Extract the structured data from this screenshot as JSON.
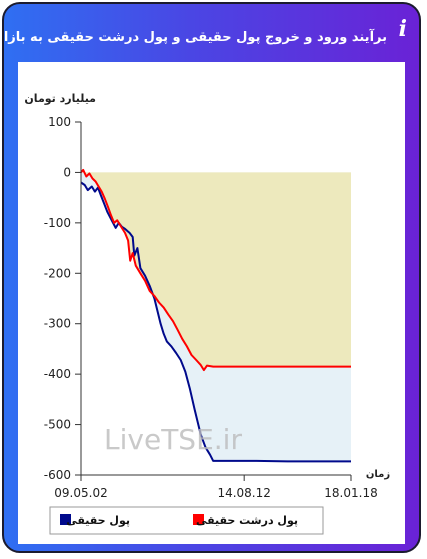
{
  "title": "برآیند ورود و خروج پول حقیقی و پول درشت حقیقی به بازار",
  "info_glyph": "i",
  "colors": {
    "gradient_start": "#2f6ff2",
    "gradient_end": "#6a22d6",
    "series_real": "#000a8c",
    "series_big_real": "#ff0000",
    "fill_big_real": "#ede9bd",
    "fill_real": "#e6f1f7"
  },
  "chart_data": {
    "type": "area",
    "title": "",
    "ylabel": "میلیارد تومان",
    "xlabel": "زمان",
    "ylim": [
      -600,
      100
    ],
    "yticks": [
      100,
      0,
      -100,
      -200,
      -300,
      -400,
      -500,
      -600
    ],
    "x_tick_labels": [
      "09.05.02",
      "14.08.12",
      "18.01.18"
    ],
    "xlim": [
      2009.33,
      2018.05
    ],
    "x_tick_values": [
      2009.33,
      2014.6,
      2018.05
    ],
    "watermark": "LiveTSE.ir",
    "grid": false,
    "legend_position": "bottom",
    "series": [
      {
        "name": "پول حقیقی",
        "color": "#000a8c",
        "points": [
          [
            2009.33,
            -20
          ],
          [
            2009.45,
            -25
          ],
          [
            2009.55,
            -35
          ],
          [
            2009.68,
            -28
          ],
          [
            2009.78,
            -38
          ],
          [
            2009.88,
            -30
          ],
          [
            2009.97,
            -45
          ],
          [
            2010.08,
            -62
          ],
          [
            2010.18,
            -78
          ],
          [
            2010.32,
            -95
          ],
          [
            2010.45,
            -110
          ],
          [
            2010.55,
            -100
          ],
          [
            2010.65,
            -108
          ],
          [
            2010.75,
            -112
          ],
          [
            2010.9,
            -120
          ],
          [
            2011.0,
            -128
          ],
          [
            2011.05,
            -165
          ],
          [
            2011.15,
            -150
          ],
          [
            2011.25,
            -190
          ],
          [
            2011.4,
            -205
          ],
          [
            2011.55,
            -225
          ],
          [
            2011.7,
            -250
          ],
          [
            2011.8,
            -275
          ],
          [
            2011.9,
            -300
          ],
          [
            2012.0,
            -320
          ],
          [
            2012.1,
            -335
          ],
          [
            2012.25,
            -345
          ],
          [
            2012.4,
            -358
          ],
          [
            2012.55,
            -372
          ],
          [
            2012.7,
            -395
          ],
          [
            2012.85,
            -430
          ],
          [
            2013.0,
            -470
          ],
          [
            2013.1,
            -495
          ],
          [
            2013.2,
            -520
          ],
          [
            2013.35,
            -545
          ],
          [
            2013.5,
            -560
          ],
          [
            2013.6,
            -572
          ],
          [
            2014.0,
            -572
          ],
          [
            2015.0,
            -572
          ],
          [
            2016.0,
            -573
          ],
          [
            2017.0,
            -573
          ],
          [
            2018.05,
            -573
          ]
        ]
      },
      {
        "name": "پول درشت حقیقی",
        "color": "#ff0000",
        "points": [
          [
            2009.33,
            0
          ],
          [
            2009.4,
            5
          ],
          [
            2009.5,
            -8
          ],
          [
            2009.6,
            -2
          ],
          [
            2009.7,
            -12
          ],
          [
            2009.8,
            -18
          ],
          [
            2009.9,
            -28
          ],
          [
            2010.0,
            -38
          ],
          [
            2010.1,
            -52
          ],
          [
            2010.2,
            -68
          ],
          [
            2010.3,
            -85
          ],
          [
            2010.4,
            -100
          ],
          [
            2010.5,
            -95
          ],
          [
            2010.6,
            -105
          ],
          [
            2010.75,
            -120
          ],
          [
            2010.85,
            -135
          ],
          [
            2010.92,
            -175
          ],
          [
            2011.0,
            -160
          ],
          [
            2011.1,
            -185
          ],
          [
            2011.25,
            -200
          ],
          [
            2011.4,
            -215
          ],
          [
            2011.55,
            -235
          ],
          [
            2011.7,
            -245
          ],
          [
            2011.85,
            -258
          ],
          [
            2012.0,
            -268
          ],
          [
            2012.15,
            -282
          ],
          [
            2012.3,
            -295
          ],
          [
            2012.45,
            -312
          ],
          [
            2012.6,
            -330
          ],
          [
            2012.75,
            -345
          ],
          [
            2012.9,
            -362
          ],
          [
            2013.05,
            -372
          ],
          [
            2013.2,
            -382
          ],
          [
            2013.3,
            -392
          ],
          [
            2013.4,
            -383
          ],
          [
            2013.6,
            -385
          ],
          [
            2014.0,
            -385
          ],
          [
            2015.0,
            -385
          ],
          [
            2016.0,
            -385
          ],
          [
            2017.0,
            -385
          ],
          [
            2018.05,
            -385
          ]
        ]
      }
    ]
  }
}
